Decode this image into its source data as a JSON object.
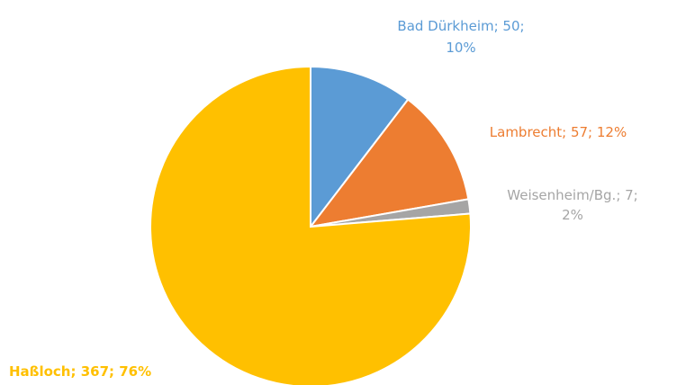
{
  "chart_data": {
    "type": "pie",
    "title": "",
    "slices": [
      {
        "name": "Bad Dürkheim",
        "value": 50,
        "percent": "10%",
        "label_line1": "Bad Dürkheim; 50;",
        "label_line2": "10%",
        "color": "#5B9BD5"
      },
      {
        "name": "Lambrecht",
        "value": 57,
        "percent": "12%",
        "label_line1": "Lambrecht; 57; 12%",
        "label_line2": "",
        "color": "#ED7D31"
      },
      {
        "name": "Weisenheim/Bg.",
        "value": 7,
        "percent": "2%",
        "label_line1": "Weisenheim/Bg.; 7;",
        "label_line2": "2%",
        "color": "#A5A5A5"
      },
      {
        "name": "Haßloch",
        "value": 367,
        "percent": "76%",
        "label_line1": "Haßloch; 367; 76%",
        "label_line2": "",
        "color": "#FFC000"
      }
    ],
    "start_angle_deg": 0,
    "direction": "clockwise"
  }
}
